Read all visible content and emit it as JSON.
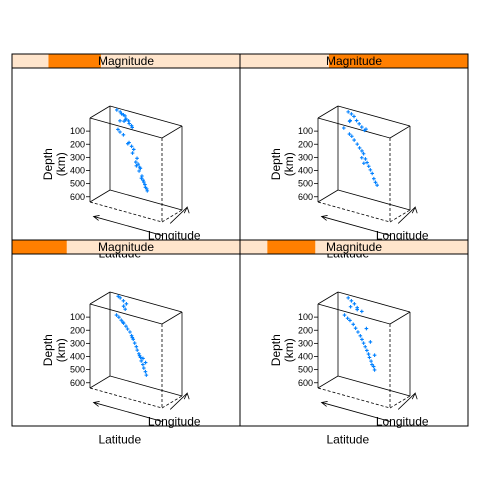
{
  "chart_data": {
    "type": "scatter",
    "layout": "2x2 lattice of 3D scatter panels (cloud), conditioned on shingle",
    "strip_label": "Magnitude",
    "colors": {
      "strip_background": "#ffe5cc",
      "strip_range": "#ff7f00",
      "points": "#0080ff",
      "axes": "#000000"
    },
    "axes": {
      "zlabel_line1": "Depth",
      "zlabel_line2": "(km)",
      "xlabel": "Latitude",
      "ylabel": "Longitude",
      "z_ticks": [
        "100",
        "200",
        "300",
        "400",
        "500",
        "600"
      ]
    },
    "panels": [
      {
        "position": "top-left",
        "strip_range": [
          0.16,
          0.39
        ],
        "points": [
          [
            0.38,
            0.03,
            0.05
          ],
          [
            0.45,
            0.05,
            0.1
          ],
          [
            0.52,
            0.08,
            0.18
          ],
          [
            0.58,
            0.1,
            0.25
          ],
          [
            0.62,
            0.12,
            0.35
          ],
          [
            0.65,
            0.14,
            0.45
          ],
          [
            0.68,
            0.15,
            0.55
          ],
          [
            0.7,
            0.17,
            0.62
          ],
          [
            0.72,
            0.18,
            0.68
          ],
          [
            0.74,
            0.2,
            0.72
          ],
          [
            0.4,
            0.06,
            0.08
          ],
          [
            0.5,
            0.09,
            0.2
          ],
          [
            0.56,
            0.11,
            0.3
          ],
          [
            0.6,
            0.13,
            0.4
          ],
          [
            0.64,
            0.15,
            0.5
          ],
          [
            0.67,
            0.16,
            0.58
          ],
          [
            0.71,
            0.19,
            0.65
          ],
          [
            0.73,
            0.21,
            0.7
          ],
          [
            0.55,
            0.1,
            0.22
          ],
          [
            0.63,
            0.14,
            0.42
          ],
          [
            0.69,
            0.17,
            0.6
          ],
          [
            0.2,
            0.95,
            0.05
          ],
          [
            0.25,
            0.9,
            0.08
          ],
          [
            0.3,
            0.88,
            0.12
          ],
          [
            0.15,
            0.97,
            0.03
          ],
          [
            0.35,
            0.85,
            0.15
          ],
          [
            0.1,
            0.98,
            0.02
          ],
          [
            0.28,
            0.92,
            0.1
          ],
          [
            0.22,
            0.96,
            0.06
          ],
          [
            0.18,
            0.93,
            0.04
          ],
          [
            0.33,
            0.89,
            0.14
          ],
          [
            0.4,
            0.88,
            0.6
          ],
          [
            0.45,
            0.9,
            0.62
          ],
          [
            0.3,
            0.7,
            0.05
          ],
          [
            0.25,
            0.6,
            0.06
          ],
          [
            0.32,
            0.55,
            0.04
          ]
        ]
      },
      {
        "position": "top-right",
        "strip_range": [
          0.39,
          1.0
        ],
        "points": [
          [
            0.35,
            0.03,
            0.04
          ],
          [
            0.42,
            0.06,
            0.1
          ],
          [
            0.48,
            0.08,
            0.16
          ],
          [
            0.55,
            0.1,
            0.24
          ],
          [
            0.6,
            0.12,
            0.3
          ],
          [
            0.64,
            0.15,
            0.4
          ],
          [
            0.68,
            0.17,
            0.48
          ],
          [
            0.72,
            0.2,
            0.58
          ],
          [
            0.76,
            0.22,
            0.65
          ],
          [
            0.45,
            0.07,
            0.12
          ],
          [
            0.52,
            0.09,
            0.2
          ],
          [
            0.58,
            0.11,
            0.27
          ],
          [
            0.62,
            0.14,
            0.36
          ],
          [
            0.66,
            0.16,
            0.44
          ],
          [
            0.7,
            0.19,
            0.52
          ],
          [
            0.74,
            0.21,
            0.62
          ],
          [
            0.3,
            0.85,
            0.08
          ],
          [
            0.35,
            0.8,
            0.1
          ],
          [
            0.4,
            0.75,
            0.12
          ],
          [
            0.25,
            0.9,
            0.05
          ],
          [
            0.2,
            0.95,
            0.04
          ],
          [
            0.45,
            0.7,
            0.14
          ],
          [
            0.38,
            0.82,
            0.5
          ],
          [
            0.42,
            0.78,
            0.55
          ],
          [
            0.15,
            0.97,
            0.03
          ],
          [
            0.28,
            0.6,
            0.05
          ],
          [
            0.3,
            0.5,
            0.04
          ],
          [
            0.5,
            0.6,
            0.1
          ]
        ]
      },
      {
        "position": "bottom-left",
        "strip_range": [
          0.0,
          0.24
        ],
        "points": [
          [
            0.36,
            0.03,
            0.05
          ],
          [
            0.42,
            0.05,
            0.1
          ],
          [
            0.48,
            0.07,
            0.16
          ],
          [
            0.53,
            0.09,
            0.22
          ],
          [
            0.57,
            0.11,
            0.3
          ],
          [
            0.61,
            0.12,
            0.38
          ],
          [
            0.64,
            0.14,
            0.46
          ],
          [
            0.67,
            0.15,
            0.54
          ],
          [
            0.7,
            0.17,
            0.62
          ],
          [
            0.73,
            0.19,
            0.7
          ],
          [
            0.39,
            0.04,
            0.07
          ],
          [
            0.45,
            0.06,
            0.13
          ],
          [
            0.5,
            0.08,
            0.19
          ],
          [
            0.55,
            0.1,
            0.26
          ],
          [
            0.59,
            0.11,
            0.34
          ],
          [
            0.62,
            0.13,
            0.42
          ],
          [
            0.66,
            0.15,
            0.5
          ],
          [
            0.69,
            0.16,
            0.58
          ],
          [
            0.72,
            0.18,
            0.66
          ],
          [
            0.44,
            0.06,
            0.12
          ],
          [
            0.56,
            0.1,
            0.28
          ],
          [
            0.65,
            0.14,
            0.48
          ],
          [
            0.2,
            0.95,
            0.05
          ],
          [
            0.15,
            0.97,
            0.03
          ],
          [
            0.25,
            0.92,
            0.07
          ],
          [
            0.3,
            0.6,
            0.04
          ],
          [
            0.35,
            0.5,
            0.05
          ],
          [
            0.5,
            0.85,
            0.65
          ],
          [
            0.55,
            0.8,
            0.68
          ],
          [
            0.12,
            0.98,
            0.02
          ]
        ]
      },
      {
        "position": "bottom-right",
        "strip_range": [
          0.12,
          0.33
        ],
        "points": [
          [
            0.36,
            0.03,
            0.05
          ],
          [
            0.43,
            0.05,
            0.1
          ],
          [
            0.5,
            0.08,
            0.18
          ],
          [
            0.56,
            0.1,
            0.26
          ],
          [
            0.6,
            0.12,
            0.34
          ],
          [
            0.64,
            0.14,
            0.42
          ],
          [
            0.67,
            0.16,
            0.5
          ],
          [
            0.7,
            0.18,
            0.58
          ],
          [
            0.73,
            0.2,
            0.64
          ],
          [
            0.4,
            0.04,
            0.08
          ],
          [
            0.47,
            0.07,
            0.14
          ],
          [
            0.53,
            0.09,
            0.22
          ],
          [
            0.58,
            0.11,
            0.3
          ],
          [
            0.62,
            0.13,
            0.38
          ],
          [
            0.66,
            0.15,
            0.46
          ],
          [
            0.69,
            0.17,
            0.54
          ],
          [
            0.72,
            0.19,
            0.6
          ],
          [
            0.35,
            0.7,
            0.06
          ],
          [
            0.4,
            0.75,
            0.1
          ],
          [
            0.45,
            0.8,
            0.3
          ],
          [
            0.5,
            0.82,
            0.45
          ],
          [
            0.2,
            0.95,
            0.05
          ],
          [
            0.25,
            0.92,
            0.07
          ],
          [
            0.15,
            0.97,
            0.03
          ],
          [
            0.3,
            0.88,
            0.12
          ],
          [
            0.55,
            0.85,
            0.6
          ],
          [
            0.3,
            0.55,
            0.04
          ]
        ]
      }
    ]
  }
}
